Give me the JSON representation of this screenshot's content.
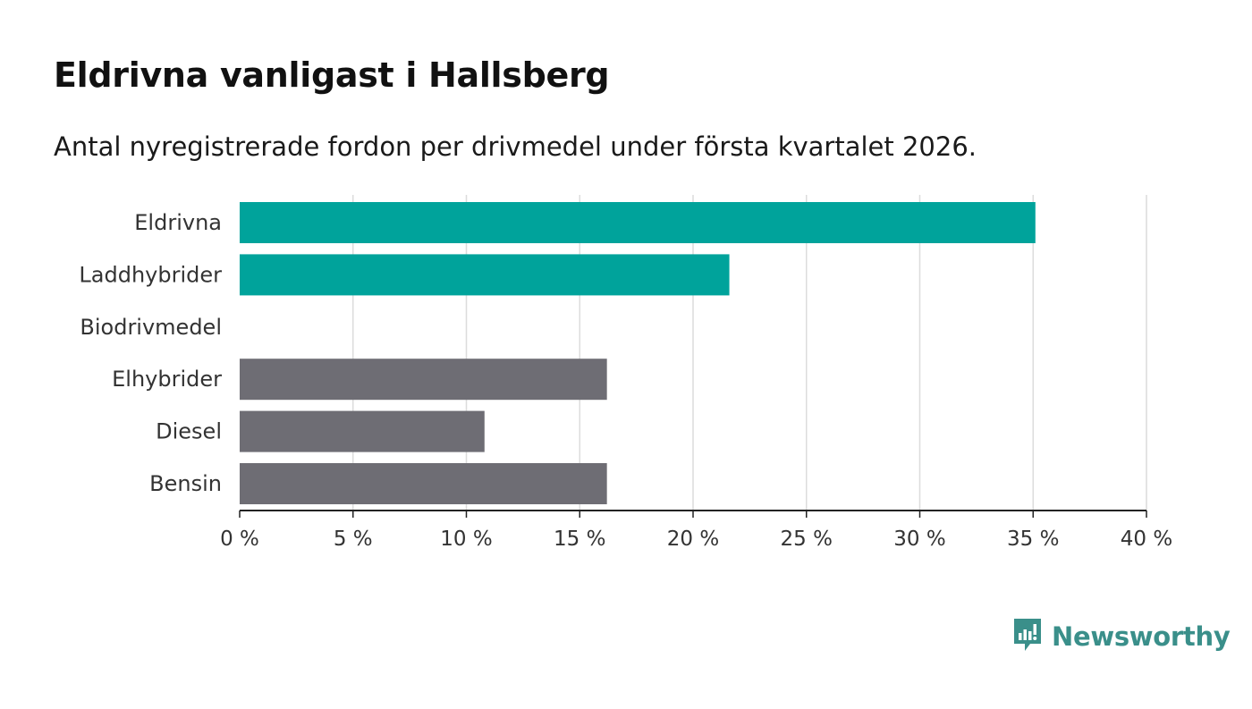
{
  "title": "Eldrivna vanligast i Hallsberg",
  "subtitle": "Antal nyregistrerade fordon per drivmedel under första kvartalet 2026.",
  "brand": {
    "name": "Newsworthy",
    "color": "#3a8f8a",
    "icon": "newsworthy-logo-icon"
  },
  "chart_data": {
    "type": "bar",
    "orientation": "horizontal",
    "categories": [
      "Eldrivna",
      "Laddhybrider",
      "Biodrivmedel",
      "Elhybrider",
      "Diesel",
      "Bensin"
    ],
    "values": [
      35.1,
      21.6,
      0,
      16.2,
      10.8,
      16.2
    ],
    "colors": [
      "#00a39b",
      "#00a39b",
      "#00a39b",
      "#6e6d74",
      "#6e6d74",
      "#6e6d74"
    ],
    "xlim": [
      0,
      40
    ],
    "xticks": [
      0,
      5,
      10,
      15,
      20,
      25,
      30,
      35,
      40
    ],
    "tick_labels": [
      "0 %",
      "5 %",
      "10 %",
      "15 %",
      "20 %",
      "25 %",
      "30 %",
      "35 %",
      "40 %"
    ],
    "grid": true,
    "xlabel": "",
    "ylabel": ""
  }
}
